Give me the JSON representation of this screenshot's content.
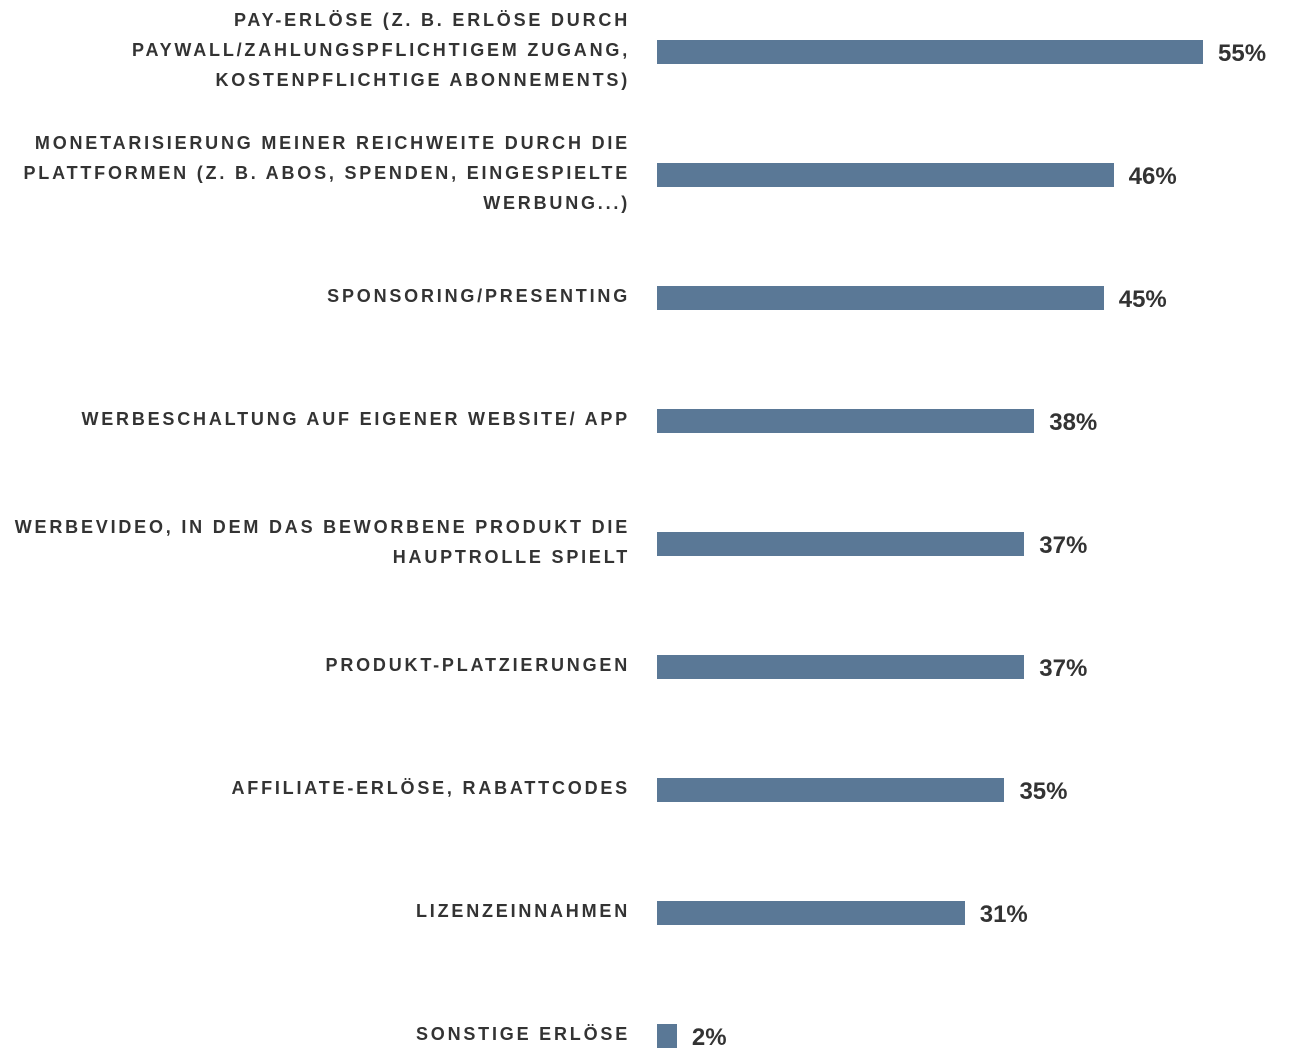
{
  "chart_data": {
    "type": "hbar",
    "categories": [
      "PAY-ERLÖSE (Z. B. ERLÖSE DURCH PAYWALL/ZAHLUNGSPFLICHTIGEM ZUGANG, KOSTENPFLICHTIGE ABONNEMENTS)",
      "MONETARISIERUNG MEINER REICHWEITE DURCH DIE PLATTFORMEN (Z. B. ABOS, SPENDEN, EINGESPIELTE WERBUNG...)",
      "SPONSORING/PRESENTING",
      "WERBESCHALTUNG AUF EIGENER WEBSITE/ APP",
      "WERBEVIDEO, IN DEM DAS BEWORBENE PRODUKT DIE HAUPTROLLE SPIELT",
      "PRODUKT-PLATZIERUNGEN",
      "AFFILIATE-ERLÖSE, RABATTCODES",
      "LIZENZEINNAHMEN",
      "SONSTIGE ERLÖSE"
    ],
    "values": [
      55,
      46,
      45,
      38,
      37,
      37,
      35,
      31,
      2
    ],
    "value_labels": [
      "55%",
      "46%",
      "45%",
      "38%",
      "37%",
      "37%",
      "35%",
      "31%",
      "2%"
    ],
    "color": "#5a7896"
  }
}
